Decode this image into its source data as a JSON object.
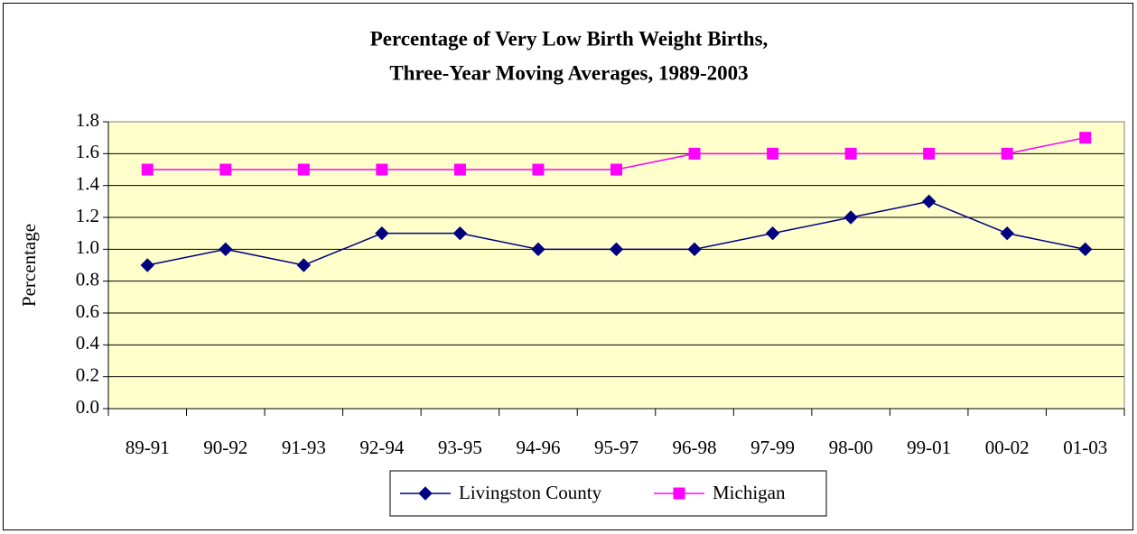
{
  "chart_data": {
    "type": "line",
    "title": [
      "Percentage of Very Low Birth Weight Births,",
      "Three-Year Moving Averages, 1989-2003"
    ],
    "y_label": "Percentage",
    "categories": [
      "89-91",
      "90-92",
      "91-93",
      "92-94",
      "93-95",
      "94-96",
      "95-97",
      "96-98",
      "97-99",
      "98-00",
      "99-01",
      "00-02",
      "01-03"
    ],
    "series": [
      {
        "name": "Livingston County",
        "color": "#000080",
        "marker": "diamond",
        "values": [
          0.9,
          1.0,
          0.9,
          1.1,
          1.1,
          1.0,
          1.0,
          1.0,
          1.1,
          1.2,
          1.3,
          1.1,
          1.0
        ]
      },
      {
        "name": "Michigan",
        "color": "#ff00ff",
        "marker": "square",
        "values": [
          1.5,
          1.5,
          1.5,
          1.5,
          1.5,
          1.5,
          1.5,
          1.6,
          1.6,
          1.6,
          1.6,
          1.6,
          1.7
        ]
      }
    ],
    "ylim": [
      0,
      1.8
    ],
    "yticks": [
      {
        "value": 0,
        "label": "0.0"
      },
      0.2,
      0.4,
      0.6,
      0.8,
      {
        "value": 1,
        "label": "1.0"
      },
      1.2,
      1.4,
      1.6,
      1.8
    ],
    "grid": true,
    "legend": "bottom",
    "plot_background": "#ffffcc"
  }
}
